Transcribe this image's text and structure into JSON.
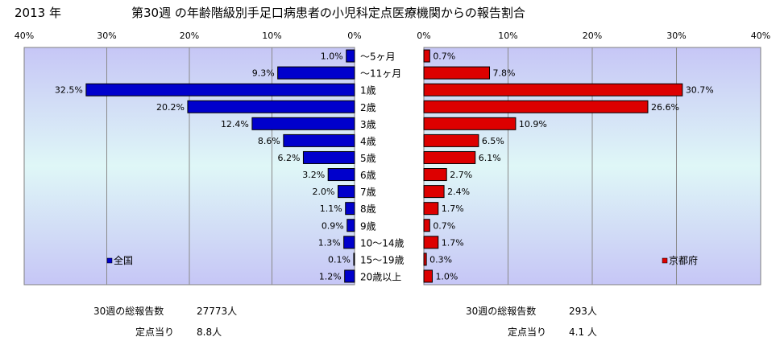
{
  "header": {
    "year": "2013 年",
    "title": "第30週 の年齢階級別手足口病患者の小児科定点医療機関からの報告割合"
  },
  "chart_data": {
    "type": "bar",
    "orientation": "horizontal-butterfly",
    "categories": [
      "〜5ヶ月",
      "〜11ヶ月",
      "1歳",
      "2歳",
      "3歳",
      "4歳",
      "5歳",
      "6歳",
      "7歳",
      "8歳",
      "9歳",
      "10〜14歳",
      "15〜19歳",
      "20歳以上"
    ],
    "xlim": [
      0,
      40
    ],
    "ticks": [
      "40%",
      "30%",
      "20%",
      "10%",
      "0%"
    ],
    "ticks_right": [
      "0%",
      "10%",
      "20%",
      "30%",
      "40%"
    ],
    "grid": true,
    "series": [
      {
        "name": "全国",
        "side": "left",
        "color": "#0000cc",
        "values": [
          1.0,
          9.3,
          32.5,
          20.2,
          12.4,
          8.6,
          6.2,
          3.2,
          2.0,
          1.1,
          0.9,
          1.3,
          0.1,
          1.2
        ],
        "labels": [
          "1.0%",
          "9.3%",
          "32.5%",
          "20.2%",
          "12.4%",
          "8.6%",
          "6.2%",
          "3.2%",
          "2.0%",
          "1.1%",
          "0.9%",
          "1.3%",
          "0.1%",
          "1.2%"
        ]
      },
      {
        "name": "京都府",
        "side": "right",
        "color": "#dd0000",
        "values": [
          0.7,
          7.8,
          30.7,
          26.6,
          10.9,
          6.5,
          6.1,
          2.7,
          2.4,
          1.7,
          0.7,
          1.7,
          0.3,
          1.0
        ],
        "labels": [
          "0.7%",
          "7.8%",
          "30.7%",
          "26.6%",
          "10.9%",
          "6.5%",
          "6.1%",
          "2.7%",
          "2.4%",
          "1.7%",
          "0.7%",
          "1.7%",
          "0.3%",
          "1.0%"
        ]
      }
    ]
  },
  "stats": {
    "left": {
      "total_label": "30週の総報告数",
      "total_value": "27773人",
      "per_label": "定点当り",
      "per_value": "8.8人"
    },
    "right": {
      "total_label": "30週の総報告数",
      "total_value": "293人",
      "per_label": "定点当り",
      "per_value": "4.1 人"
    }
  }
}
